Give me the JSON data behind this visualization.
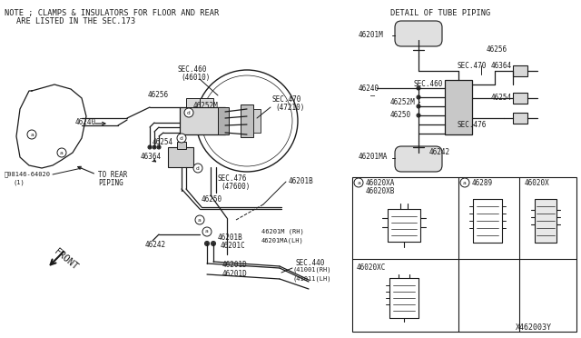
{
  "bg_color": "#ffffff",
  "line_color": "#1a1a1a",
  "title": "DETAIL OF TUBE PIPING",
  "note_line1": "NOTE ; CLAMPS & INSULATORS FOR FLOOR AND REAR",
  "note_line2": "ARE LISTED IN THE SEC.173",
  "diagram_id": "X462003Y"
}
